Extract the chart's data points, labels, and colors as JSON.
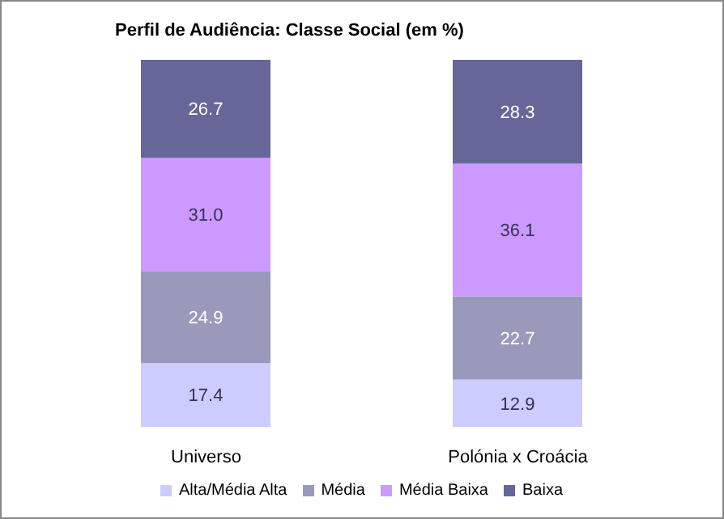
{
  "chart_data": {
    "type": "bar",
    "stacked": true,
    "title": "Perfil de Audiência: Classe Social (em %)",
    "categories": [
      "Universo",
      "Polónia x Croácia"
    ],
    "series": [
      {
        "name": "Alta/Média Alta",
        "color": "#ccccff",
        "values": [
          17.4,
          12.9
        ],
        "value_labels": [
          "17.4",
          "12.9"
        ]
      },
      {
        "name": "Média",
        "color": "#9999bb",
        "values": [
          24.9,
          22.7
        ],
        "value_labels": [
          "24.9",
          "22.7"
        ]
      },
      {
        "name": "Média Baixa",
        "color": "#cc99ff",
        "values": [
          31.0,
          36.1
        ],
        "value_labels": [
          "31.0",
          "36.1"
        ]
      },
      {
        "name": "Baixa",
        "color": "#666699",
        "values": [
          26.7,
          28.3
        ],
        "value_labels": [
          "26.7",
          "28.3"
        ]
      }
    ],
    "legend": "bottom",
    "grid": false
  }
}
